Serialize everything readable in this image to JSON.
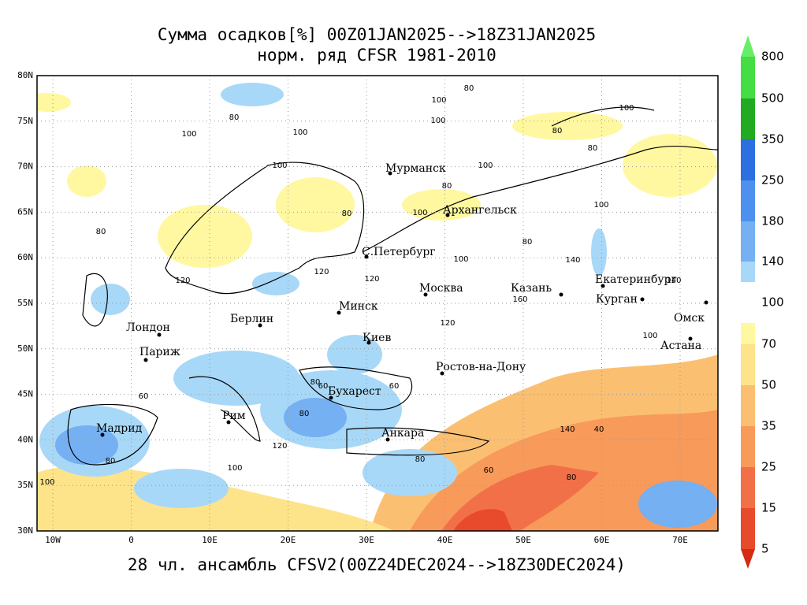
{
  "header": {
    "title": "Сумма осадков[%] 00Z01JAN2025-->18Z31JAN2025",
    "subtitle": "норм. ряд CFSR 1981-2010"
  },
  "footer": "28 чл. ансамбль CFSV2(00Z24DEC2024-->18Z30DEC2024)",
  "axes": {
    "lon": [
      "10W",
      "0",
      "10E",
      "20E",
      "30E",
      "40E",
      "50E",
      "60E",
      "70E"
    ],
    "lat": [
      "80N",
      "75N",
      "70N",
      "65N",
      "60N",
      "55N",
      "50N",
      "45N",
      "40N",
      "35N",
      "30N"
    ]
  },
  "cities": [
    "Мурманск",
    "Архангельск",
    "С.Петербург",
    "Москва",
    "Казань",
    "Екатеринбург",
    "Курган",
    "Омск",
    "Астана",
    "Минск",
    "Берлин",
    "Лондон",
    "Париж",
    "Киев",
    "Ростов-на-Дону",
    "Бухарест",
    "Рим",
    "Мадрид",
    "Анкара"
  ],
  "contour_labels": [
    "80",
    "100",
    "100",
    "80",
    "100",
    "100",
    "100",
    "80",
    "100",
    "80",
    "80",
    "100",
    "100",
    "80",
    "100",
    "80",
    "80",
    "100",
    "120",
    "120",
    "120",
    "140",
    "160",
    "140",
    "120",
    "100",
    "60",
    "80",
    "60",
    "80",
    "40",
    "60",
    "80",
    "100",
    "120",
    "80",
    "60",
    "80",
    "100",
    "140"
  ],
  "colorbar": {
    "labels": [
      "800",
      "500",
      "350",
      "250",
      "180",
      "140",
      "100",
      "70",
      "50",
      "35",
      "25",
      "15",
      "5"
    ]
  }
}
